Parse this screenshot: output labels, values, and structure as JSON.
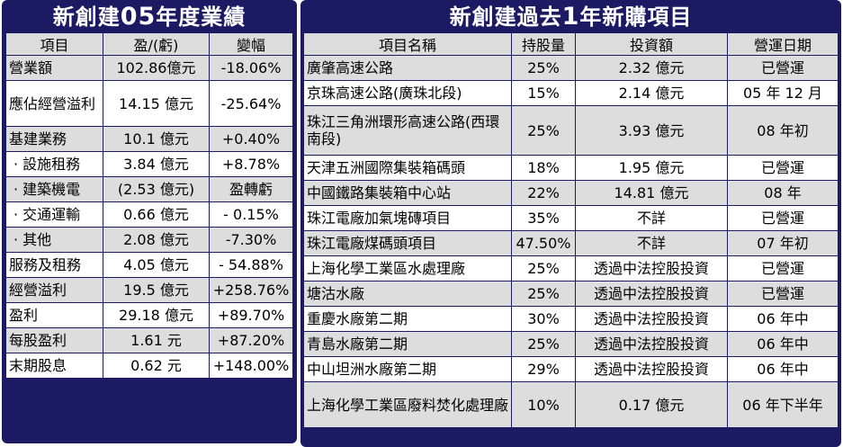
{
  "left": {
    "title_prefix": "新創建",
    "title_num": "05",
    "title_suffix": "年度業績",
    "headers": [
      "項目",
      "盈/(虧)",
      "變幅"
    ],
    "rows": [
      {
        "item": "營業額",
        "value": "102.86億元",
        "change": "-18.06%"
      },
      {
        "item": "應佔經營溢利",
        "value": "14.15 億元",
        "change": "-25.64%"
      },
      {
        "item": "基建業務",
        "value": "10.1 億元",
        "change": "+0.40%"
      },
      {
        "item": "· 設施租務",
        "value": "3.84 億元",
        "change": "+8.78%"
      },
      {
        "item": "· 建築機電",
        "value": "(2.53 億元)",
        "change": "盈轉虧"
      },
      {
        "item": "· 交通運輸",
        "value": "0.66 億元",
        "change": "- 0.15%"
      },
      {
        "item": "· 其他",
        "value": "2.08 億元",
        "change": "-7.30%"
      },
      {
        "item": "服務及租務",
        "value": "4.05 億元",
        "change": "- 54.88%"
      },
      {
        "item": "經營溢利",
        "value": "19.5 億元",
        "change": "+258.76%"
      },
      {
        "item": "盈利",
        "value": "29.18 億元",
        "change": "+89.70%"
      },
      {
        "item": "每股盈利",
        "value": "1.61 元",
        "change": "+87.20%"
      },
      {
        "item": "末期股息",
        "value": "0.62 元",
        "change": "+148.00%"
      }
    ]
  },
  "right": {
    "title_prefix": "新創建過去",
    "title_num": "1",
    "title_suffix": "年新購項目",
    "headers": [
      "項目名稱",
      "持股量",
      "投資額",
      "營運日期"
    ],
    "rows": [
      {
        "name": "廣肇高速公路",
        "stake": "25%",
        "investment": "2.32 億元",
        "date": "已營運"
      },
      {
        "name": "京珠高速公路(廣珠北段)",
        "stake": "15%",
        "investment": "2.14 億元",
        "date": "05 年 12 月"
      },
      {
        "name": "珠江三角洲環形高速公路(西環南段)",
        "stake": "25%",
        "investment": "3.93 億元",
        "date": "08 年初"
      },
      {
        "name": "天津五洲國際集裝箱碼頭",
        "stake": "18%",
        "investment": "1.95 億元",
        "date": "已營運"
      },
      {
        "name": "中國鐵路集裝箱中心站",
        "stake": "22%",
        "investment": "14.81 億元",
        "date": "08 年"
      },
      {
        "name": "珠江電廠加氣塊磚項目",
        "stake": "35%",
        "investment": "不詳",
        "date": "已營運"
      },
      {
        "name": "珠江電廠煤碼頭項目",
        "stake": "47.50%",
        "investment": "不詳",
        "date": "07 年初"
      },
      {
        "name": "上海化學工業區水處理廠",
        "stake": "25%",
        "investment": "透過中法控股投資",
        "date": "已營運"
      },
      {
        "name": "塘沽水廠",
        "stake": "25%",
        "investment": "透過中法控股投資",
        "date": "已營運"
      },
      {
        "name": "重慶水廠第二期",
        "stake": "30%",
        "investment": "透過中法控股投資",
        "date": "06 年中"
      },
      {
        "name": "青島水廠第二期",
        "stake": "25%",
        "investment": "透過中法控股投資",
        "date": "06 年中"
      },
      {
        "name": "中山坦洲水廠第二期",
        "stake": "29%",
        "investment": "透過中法控股投資",
        "date": "06 年中"
      },
      {
        "name": "上海化學工業區廢料焚化處理廠",
        "stake": "10%",
        "investment": "0.17 億元",
        "date": "06 年下半年"
      }
    ]
  }
}
